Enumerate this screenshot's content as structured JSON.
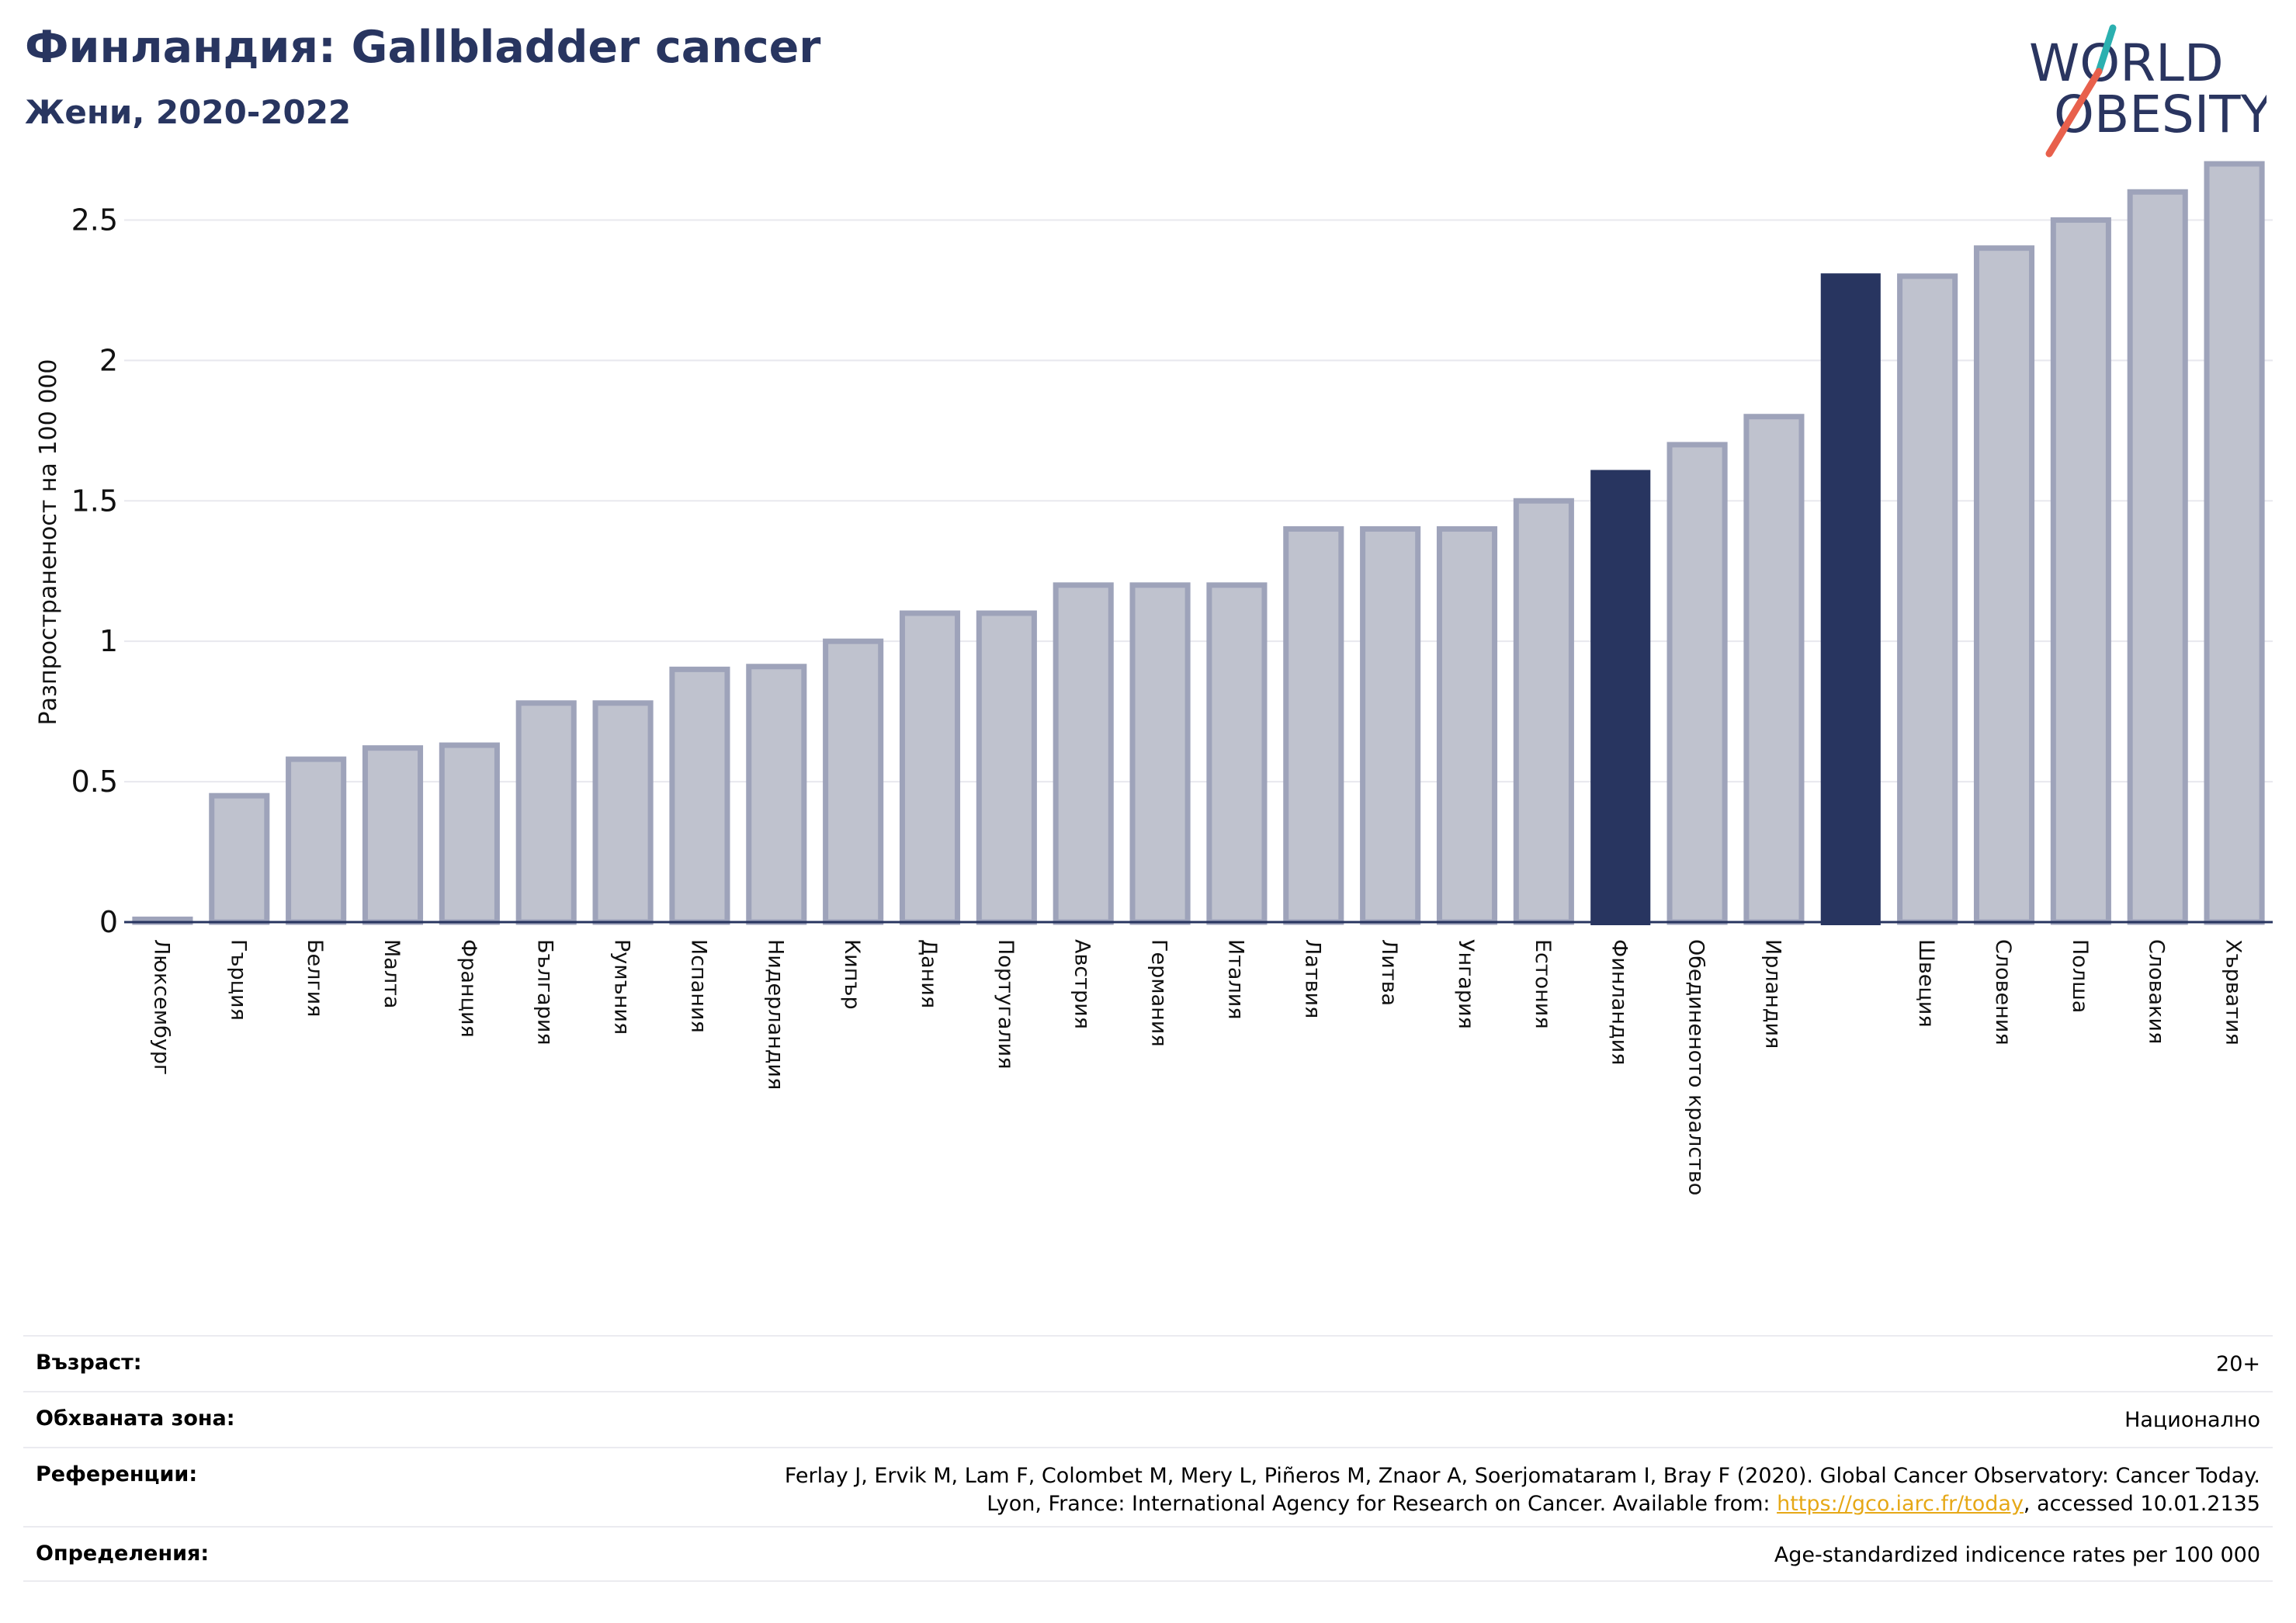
{
  "header": {
    "title": "Финландия: Gallbladder cancer",
    "subtitle": "Жени, 2020-2022"
  },
  "logo": {
    "line1": "WORLD",
    "line2": "OBESITY",
    "text_color": "#2a3560",
    "slash_colors": [
      "#2bb0b0",
      "#e8604c"
    ]
  },
  "chart_data": {
    "type": "bar",
    "title": "Финландия: Gallbladder cancer",
    "subtitle": "Жени, 2020-2022",
    "xlabel": "",
    "ylabel": "Разпространеност  на 100 000",
    "ylim": [
      0,
      2.75
    ],
    "yticks": [
      0,
      0.5,
      1,
      1.5,
      2,
      2.5
    ],
    "ytick_labels": [
      "0",
      "0.5",
      "1",
      "1.5",
      "2",
      "2.5"
    ],
    "grid": true,
    "categories": [
      "Люксембург",
      "Гърция",
      "Белгия",
      "Малта",
      "Франция",
      "България",
      "Румъния",
      "Испания",
      "Нидерландия",
      "Кипър",
      "Дания",
      "Португалия",
      "Австрия",
      "Германия",
      "Италия",
      "Латвия",
      "Литва",
      "Унгария",
      "Естония",
      "Финландия",
      "Обединеното кралство",
      "Ирландия",
      "",
      "Швеция",
      "Словения",
      "Полша",
      "Словакия",
      "Хърватия"
    ],
    "values": [
      0.01,
      0.45,
      0.58,
      0.62,
      0.63,
      0.78,
      0.78,
      0.9,
      0.91,
      1.0,
      1.1,
      1.1,
      1.2,
      1.2,
      1.2,
      1.4,
      1.4,
      1.4,
      1.5,
      1.61,
      1.7,
      1.8,
      2.31,
      2.3,
      2.4,
      2.5,
      2.6,
      2.7
    ],
    "highlighted": [
      false,
      false,
      false,
      false,
      false,
      false,
      false,
      false,
      false,
      false,
      false,
      false,
      false,
      false,
      false,
      false,
      false,
      false,
      false,
      true,
      false,
      false,
      true,
      false,
      false,
      false,
      false,
      false
    ],
    "colors": {
      "bar": "#bfc2ce",
      "bar_edge": "#9ea3ba",
      "highlight": "#283560",
      "axis": "#283560",
      "grid": "#e8e8ee"
    }
  },
  "meta": {
    "age_label": "Възраст:",
    "age_value": "20+",
    "coverage_label": "Обхваната зона:",
    "coverage_value": "Национално",
    "refs_label": "Референции:",
    "refs_line1": "Ferlay J, Ervik M, Lam F, Colombet M, Mery L, Piñeros M, Znaor A, Soerjomataram I, Bray F (2020). Global Cancer Observatory: Cancer Today.",
    "refs_line2_pre": "Lyon, France: International Agency for Research on Cancer. Available from: ",
    "refs_link": "https://gco.iarc.fr/today",
    "refs_line2_post": ", accessed 10.01.2135",
    "defs_label": "Определения:",
    "defs_value": "Age-standardized indicence rates per 100 000"
  }
}
